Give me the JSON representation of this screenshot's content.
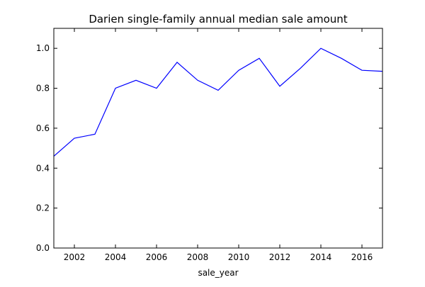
{
  "chart_data": {
    "type": "line",
    "title": "Darien single-family annual median sale amount",
    "xlabel": "sale_year",
    "ylabel": "",
    "xlim": [
      2001,
      2017
    ],
    "ylim": [
      0.0,
      1.1
    ],
    "xticks": [
      2002,
      2004,
      2006,
      2008,
      2010,
      2012,
      2014,
      2016
    ],
    "xtick_labels": [
      "2002",
      "2004",
      "2006",
      "2008",
      "2010",
      "2012",
      "2014",
      "2016"
    ],
    "yticks": [
      0.0,
      0.2,
      0.4,
      0.6,
      0.8,
      1.0
    ],
    "ytick_labels": [
      "0.0",
      "0.2",
      "0.4",
      "0.6",
      "0.8",
      "1.0"
    ],
    "grid": false,
    "legend": "none",
    "series": [
      {
        "color": "#0000ff",
        "x": [
          2001,
          2002,
          2003,
          2004,
          2005,
          2006,
          2007,
          2008,
          2009,
          2010,
          2011,
          2012,
          2013,
          2014,
          2015,
          2016,
          2017
        ],
        "y": [
          0.46,
          0.55,
          0.57,
          0.8,
          0.84,
          0.8,
          0.93,
          0.84,
          0.79,
          0.89,
          0.95,
          0.81,
          0.9,
          1.0,
          0.95,
          0.89,
          0.885
        ]
      }
    ]
  }
}
